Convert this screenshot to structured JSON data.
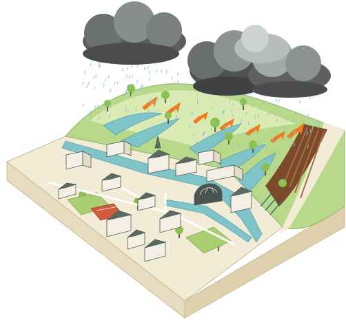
{
  "illustration": {
    "topic": "urban-flooding-runoff",
    "icon_names": [
      "storm-cloud-icon",
      "rain-icon",
      "runoff-arrow-icon",
      "tree-icon",
      "house-icon",
      "church-icon",
      "greenhouse-icon",
      "plowed-field-icon"
    ],
    "colors": {
      "cloud_dark": "#4a4c4d",
      "cloud_light": "#b9bcbd",
      "rain": "#8fc6d6",
      "water": "#7fc4c9",
      "hill_green": "#b9d98a",
      "hill_light": "#e4efc0",
      "ground": "#f2ecd6",
      "soil_side": "#e8dcc0",
      "arrow": "#f07a1e",
      "field": "#7a4a2b",
      "roof": "#5d6a63",
      "wall": "#f3efe4",
      "tree": "#8cc152",
      "sports_court": "#d35a3c"
    },
    "clouds": 4,
    "runoff_arrows": 7
  }
}
